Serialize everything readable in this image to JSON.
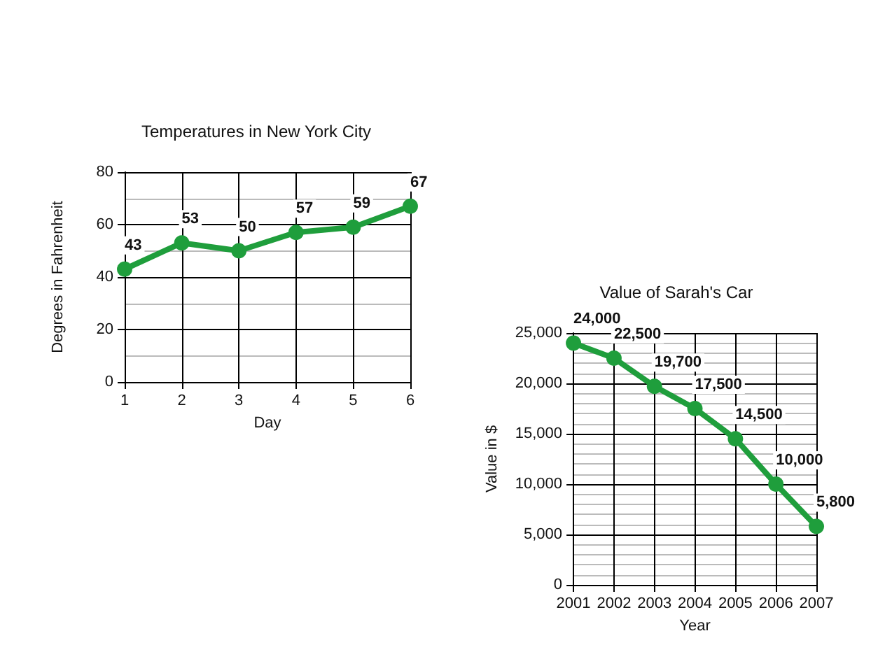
{
  "chart_data": [
    {
      "type": "line",
      "title": "Temperatures in New York City",
      "xlabel": "Day",
      "ylabel": "Degrees in Fahrenheit",
      "x": [
        1,
        2,
        3,
        4,
        5,
        6
      ],
      "series": [
        {
          "color": "#1f9e3c",
          "values": [
            43,
            53,
            50,
            57,
            59,
            67
          ]
        }
      ],
      "xlim": [
        1,
        6
      ],
      "xticks": [
        1,
        2,
        3,
        4,
        5,
        6
      ],
      "ylim": [
        0,
        80
      ],
      "yticks": [
        0,
        20,
        40,
        60,
        80
      ],
      "grid": true,
      "marker": "circle",
      "data_labels": true
    },
    {
      "type": "line",
      "title": "Value of Sarah's Car",
      "xlabel": "Year",
      "ylabel": "Value in $",
      "x": [
        2001,
        2002,
        2003,
        2004,
        2005,
        2006,
        2007
      ],
      "series": [
        {
          "color": "#1f9e3c",
          "values": [
            24000,
            22500,
            19700,
            17500,
            14500,
            10000,
            5800
          ],
          "value_labels": [
            "24,000",
            "22,500",
            "19,700",
            "17,500",
            "14,500",
            "10,000",
            "5,800"
          ]
        }
      ],
      "xlim": [
        2001,
        2007
      ],
      "xticks": [
        2001,
        2002,
        2003,
        2004,
        2005,
        2006,
        2007
      ],
      "ylim": [
        0,
        25000
      ],
      "yticks": [
        0,
        {
          "value": 5000,
          "label": "5,000"
        },
        {
          "value": 10000,
          "label": "10,000"
        },
        {
          "value": 15000,
          "label": "15,000"
        },
        {
          "value": 20000,
          "label": "20,000"
        },
        {
          "value": 25000,
          "label": "25,000"
        }
      ],
      "grid": true,
      "marker": "circle"
    }
  ]
}
